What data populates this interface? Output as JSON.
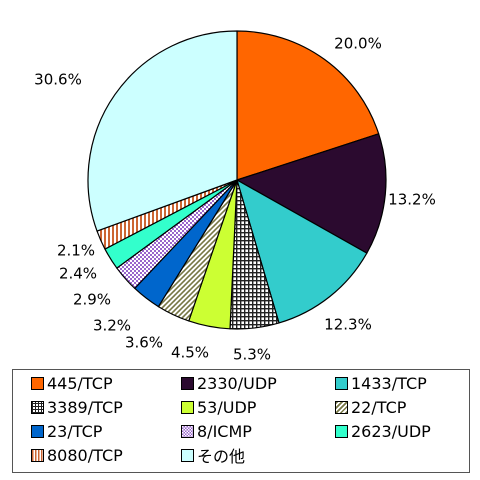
{
  "chart_data": {
    "type": "pie",
    "start_angle_deg": 0,
    "direction": "clockwise",
    "slices": [
      {
        "label": "445/TCP",
        "value": 20.0,
        "value_label": "20.0%",
        "color": "#FF6600",
        "pattern": "solid"
      },
      {
        "label": "2330/UDP",
        "value": 13.2,
        "value_label": "13.2%",
        "color": "#2B0A2F",
        "pattern": "solid"
      },
      {
        "label": "1433/TCP",
        "value": 12.3,
        "value_label": "12.3%",
        "color": "#33CCCC",
        "pattern": "solid"
      },
      {
        "label": "3389/TCP",
        "value": 5.3,
        "value_label": "5.3%",
        "color": "#333333",
        "pattern": "grid"
      },
      {
        "label": "53/UDP",
        "value": 4.5,
        "value_label": "4.5%",
        "color": "#CCFF33",
        "pattern": "solid"
      },
      {
        "label": "22/TCP",
        "value": 3.6,
        "value_label": "3.6%",
        "color": "#999966",
        "pattern": "diagonal"
      },
      {
        "label": "23/TCP",
        "value": 3.2,
        "value_label": "3.2%",
        "color": "#0066CC",
        "pattern": "solid"
      },
      {
        "label": "8/ICMP",
        "value": 2.9,
        "value_label": "2.9%",
        "color": "#9966CC",
        "pattern": "dots"
      },
      {
        "label": "2623/UDP",
        "value": 2.4,
        "value_label": "2.4%",
        "color": "#33FFCC",
        "pattern": "solid"
      },
      {
        "label": "8080/TCP",
        "value": 2.1,
        "value_label": "2.1%",
        "color": "#FF9966",
        "pattern": "vertical"
      },
      {
        "label": "その他",
        "value": 30.6,
        "value_label": "30.6%",
        "color": "#CCFFFF",
        "pattern": "solid"
      }
    ],
    "legend": {
      "placement": "bottom",
      "columns": 3
    }
  }
}
